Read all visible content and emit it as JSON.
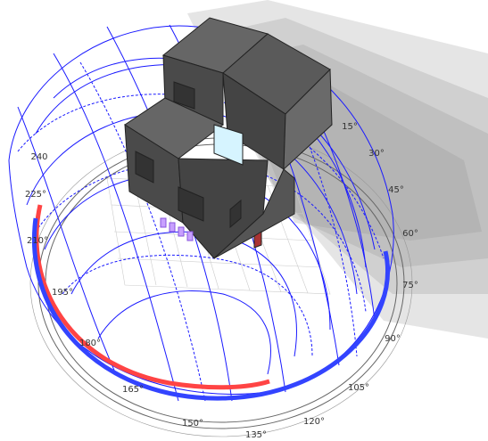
{
  "compass_labels": [
    "15°",
    "30°",
    "45°",
    "60°",
    "75°",
    "90°",
    "105°",
    "120°",
    "135°",
    "150°",
    "165°",
    "180°",
    "195°",
    "210°",
    "225°",
    "240"
  ]
}
